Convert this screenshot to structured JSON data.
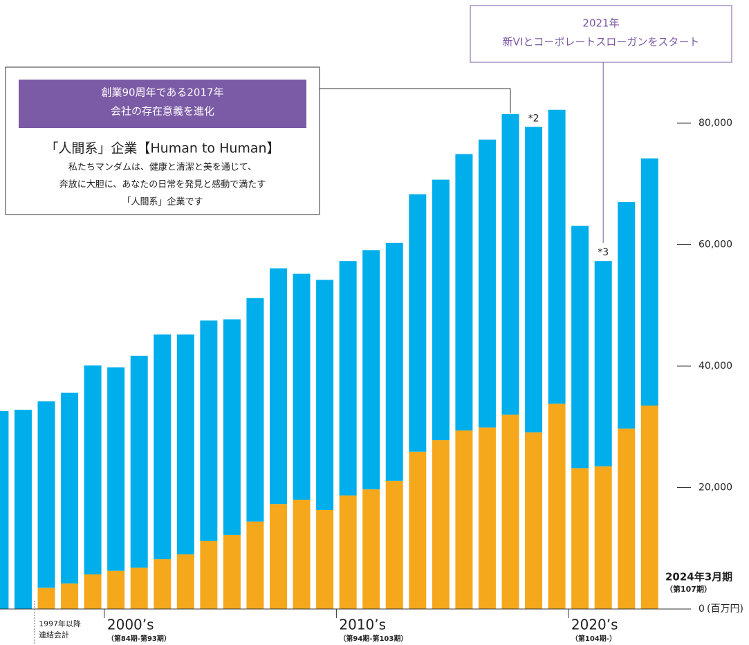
{
  "chart_data": {
    "type": "bar",
    "stacked": true,
    "categories": [
      null,
      null,
      null,
      null,
      null,
      null,
      null,
      null,
      null,
      null,
      null,
      null,
      null,
      null,
      null,
      null,
      null,
      null,
      null,
      null,
      null,
      null,
      null,
      null,
      null,
      null,
      null,
      null,
      null
    ],
    "series": [
      {
        "color": "#f5a81c",
        "values": [
          null,
          null,
          3500,
          4200,
          5700,
          6300,
          6800,
          8200,
          9000,
          11200,
          12200,
          14400,
          17300,
          18000,
          16300,
          18700,
          19700,
          21100,
          25900,
          27800,
          29400,
          29900,
          32000,
          29100,
          33800,
          23200,
          23500,
          29700,
          33500
        ]
      },
      {
        "color": "#00aeeb",
        "values": [
          32600,
          32800,
          30700,
          31400,
          34400,
          33500,
          34900,
          37000,
          36200,
          36300,
          35500,
          36800,
          38800,
          37200,
          37900,
          38600,
          39400,
          39200,
          42400,
          42900,
          45500,
          47400,
          49500,
          50300,
          48400,
          39900,
          33800,
          37300,
          40700
        ]
      }
    ],
    "ylim": [
      0,
      100000
    ],
    "yticks": [
      0,
      {
        "value": 20000,
        "label": "20,000"
      },
      {
        "value": 40000,
        "label": "40,000"
      },
      {
        "value": 60000,
        "label": "60,000"
      },
      {
        "value": 80000,
        "label": "80,000"
      }
    ],
    "unit_label": "(百万円)",
    "consolidation_note": [
      "1997年以降",
      "連結会計"
    ],
    "decades": [
      {
        "label": "2000’s",
        "sub": "（第84期-第93期）"
      },
      {
        "label": "2010’s",
        "sub": "（第94期-第103期）"
      },
      {
        "label": "2020’s",
        "sub": "（第104期-）"
      }
    ],
    "latest_label": [
      "2024年3月期",
      "（第107期）"
    ],
    "annotations": [
      "*2",
      "*3"
    ],
    "callout_2017": {
      "header": [
        "創業90周年である2017年",
        "会社の存在意義を進化"
      ],
      "title": "「人間系」企業【Human to Human】",
      "body": [
        "私たちマンダムは、健康と清潔と美を通じて、",
        "奔放に大胆に、あなたの日常を発見と感動で満たす",
        "「人間系」企業です"
      ]
    },
    "callout_2021": [
      "2021年",
      "新VIとコーポレートスローガンをスタート"
    ]
  }
}
